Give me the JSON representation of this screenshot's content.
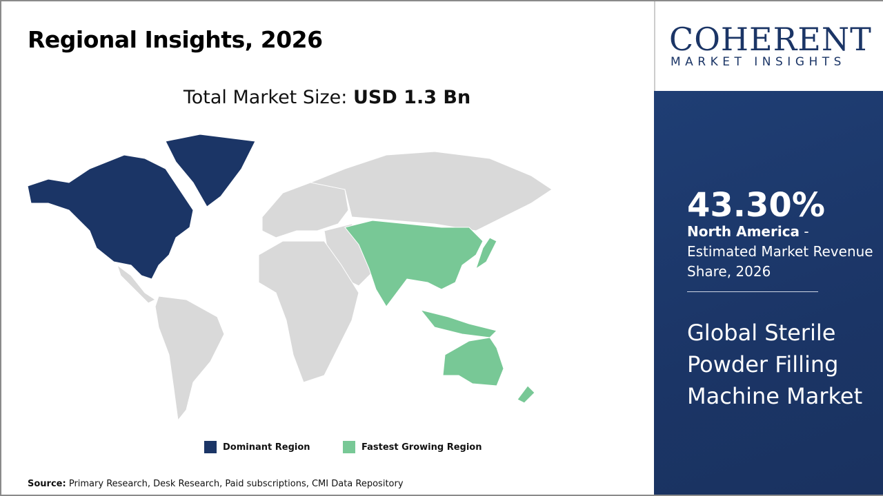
{
  "header": {
    "title": "Regional Insights, 2026"
  },
  "market_size": {
    "label": "Total Market Size:",
    "value": "USD 1.3 Bn"
  },
  "legend": [
    {
      "label": "Dominant Region",
      "color": "#1b3566"
    },
    {
      "label": "Fastest Growing Region",
      "color": "#78c896"
    }
  ],
  "map_colors": {
    "dominant": "#1b3566",
    "fastest": "#78c896",
    "other": "#d9d9d9"
  },
  "map_regions": {
    "dominant": "North America",
    "fastest": "Asia Pacific"
  },
  "source": {
    "label": "Source:",
    "text": "Primary Research, Desk Research, Paid subscriptions, CMI Data Repository"
  },
  "logo": {
    "main": "COHERENT",
    "sub": "MARKET INSIGHTS"
  },
  "panel": {
    "percent": "43.30%",
    "region": "North America",
    "desc": " - Estimated Market Revenue Share, 2026",
    "market": "Global Sterile Powder Filling Machine Market"
  }
}
